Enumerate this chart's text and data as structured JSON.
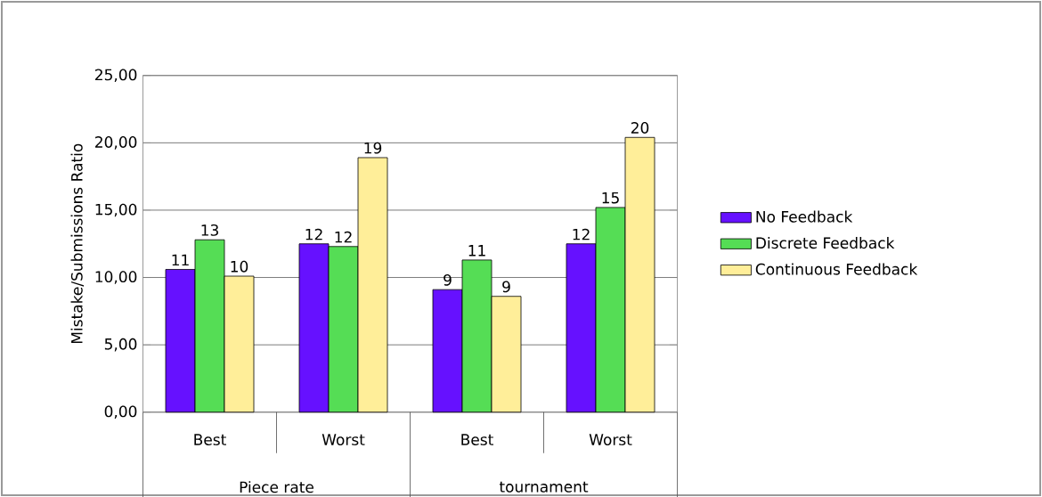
{
  "chart_data": {
    "type": "bar",
    "categories": [
      "Best",
      "Worst",
      "Best",
      "Worst"
    ],
    "annotations": [
      "Piece rate",
      "tournament"
    ],
    "ylabel": "Mistake/Submissions Ratio",
    "ylim": [
      0,
      25
    ],
    "yticks": [
      {
        "value": 0,
        "label": "0,00"
      },
      {
        "value": 5,
        "label": "5,00"
      },
      {
        "value": 10,
        "label": "10,00"
      },
      {
        "value": 15,
        "label": "15,00"
      },
      {
        "value": 20,
        "label": "20,00"
      },
      {
        "value": 25,
        "label": "25,00"
      }
    ],
    "grid": "y",
    "legend": "right",
    "series": [
      {
        "name": "No Feedback",
        "color": "#6611ff",
        "values": [
          10.6,
          12.5,
          9.1,
          12.5
        ],
        "value_labels": [
          "11",
          "12",
          "9",
          "12"
        ]
      },
      {
        "name": "Discrete Feedback",
        "color": "#55dd55",
        "values": [
          12.8,
          12.3,
          11.3,
          15.2
        ],
        "value_labels": [
          "13",
          "12",
          "11",
          "15"
        ]
      },
      {
        "name": "Continuous Feedback",
        "color": "#ffee99",
        "values": [
          10.1,
          18.9,
          8.6,
          20.4
        ],
        "value_labels": [
          "10",
          "19",
          "9",
          "20"
        ]
      }
    ]
  }
}
